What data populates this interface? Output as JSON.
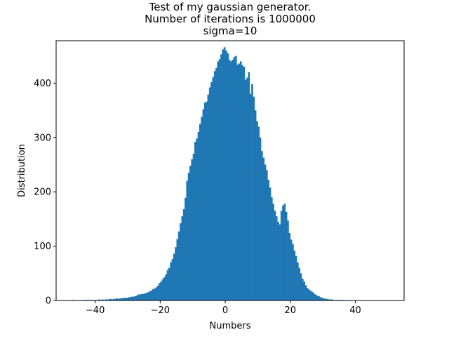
{
  "chart_data": {
    "type": "bar",
    "title_lines": [
      "Test of my gaussian generator.",
      "Number of iterations is 1000000",
      "sigma=10"
    ],
    "xlabel": "Numbers",
    "ylabel": "Distribution",
    "xlim": [
      -52,
      55
    ],
    "ylim": [
      0,
      478
    ],
    "xticks": [
      -40,
      -20,
      0,
      20,
      40
    ],
    "yticks": [
      0,
      100,
      200,
      300,
      400
    ],
    "xtick_labels": [
      "−40",
      "−20",
      "0",
      "20",
      "40"
    ],
    "ytick_labels": [
      "0",
      "100",
      "200",
      "300",
      "400"
    ],
    "grid": false,
    "bar_color": "#1f77b4",
    "bin_start": -47,
    "bin_width": 0.5,
    "values": [
      1,
      0,
      0,
      0,
      0,
      0,
      1,
      1,
      1,
      1,
      1,
      1,
      1,
      1,
      1,
      1,
      2,
      1,
      2,
      1,
      2,
      2,
      2,
      3,
      2,
      3,
      3,
      4,
      3,
      4,
      4,
      5,
      5,
      5,
      6,
      6,
      7,
      7,
      8,
      9,
      11,
      11,
      12,
      12,
      13,
      14,
      15,
      17,
      18,
      21,
      22,
      24,
      27,
      32,
      35,
      39,
      43,
      48,
      56,
      60,
      70,
      76,
      86,
      98,
      113,
      127,
      142,
      155,
      168,
      189,
      220,
      235,
      248,
      260,
      270,
      292,
      298,
      310,
      325,
      338,
      352,
      364,
      366,
      379,
      392,
      402,
      411,
      422,
      428,
      440,
      444,
      453,
      462,
      466,
      460,
      455,
      443,
      440,
      443,
      448,
      450,
      434,
      436,
      440,
      433,
      430,
      406,
      410,
      420,
      380,
      398,
      375,
      350,
      330,
      320,
      300,
      275,
      263,
      250,
      240,
      222,
      208,
      190,
      178,
      165,
      155,
      145,
      140,
      165,
      175,
      178,
      163,
      147,
      124,
      112,
      104,
      92,
      82,
      70,
      60,
      50,
      40,
      35,
      28,
      23,
      20,
      18,
      16,
      13,
      11,
      9,
      8,
      6,
      5,
      4,
      3,
      3,
      2,
      2,
      2,
      1,
      1,
      1,
      1,
      1,
      1,
      1,
      0,
      1,
      0,
      1
    ]
  }
}
